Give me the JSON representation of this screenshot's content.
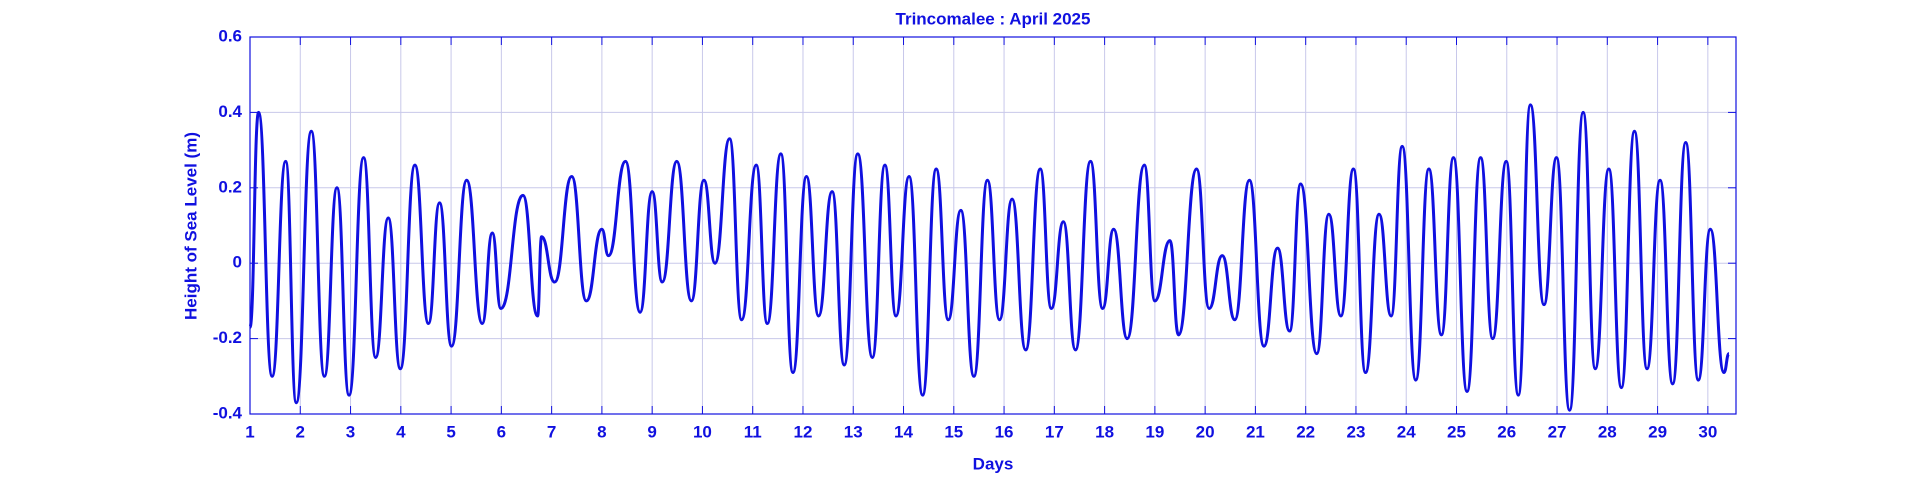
{
  "chart_data": {
    "type": "line",
    "title": "Trincomalee : April 2025",
    "x_label": "Days",
    "y_label": "Height of Sea Level (m)",
    "xlim": [
      1,
      30.56
    ],
    "ylim": [
      -0.4,
      0.6
    ],
    "xticks": [
      1,
      2,
      3,
      4,
      5,
      6,
      7,
      8,
      9,
      10,
      11,
      12,
      13,
      14,
      15,
      16,
      17,
      18,
      19,
      20,
      21,
      22,
      23,
      24,
      25,
      26,
      27,
      28,
      29,
      30
    ],
    "yticks": [
      -0.4,
      -0.2,
      0,
      0.2,
      0.4,
      0.6
    ],
    "grid": true,
    "series": [
      {
        "name": "Height of Sea Level",
        "color": "#1010e0",
        "x": [
          1.0,
          1.17,
          1.44,
          1.71,
          1.92,
          2.22,
          2.48,
          2.73,
          2.97,
          3.26,
          3.5,
          3.75,
          3.99,
          4.28,
          4.55,
          4.77,
          5.01,
          5.31,
          5.62,
          5.82,
          5.99,
          6.43,
          6.72,
          6.8,
          7.06,
          7.4,
          7.69,
          8.0,
          8.13,
          8.47,
          8.76,
          9.0,
          9.2,
          9.49,
          9.78,
          10.03,
          10.25,
          10.54,
          10.78,
          11.07,
          11.29,
          11.56,
          11.8,
          12.07,
          12.31,
          12.58,
          12.82,
          13.09,
          13.38,
          13.63,
          13.85,
          14.11,
          14.38,
          14.65,
          14.89,
          15.14,
          15.4,
          15.67,
          15.91,
          16.16,
          16.43,
          16.72,
          16.94,
          17.18,
          17.42,
          17.72,
          17.96,
          18.18,
          18.45,
          18.79,
          19.0,
          19.3,
          19.47,
          19.83,
          20.08,
          20.34,
          20.59,
          20.88,
          21.17,
          21.44,
          21.68,
          21.9,
          22.22,
          22.46,
          22.7,
          22.95,
          23.19,
          23.46,
          23.7,
          23.92,
          24.19,
          24.45,
          24.7,
          24.94,
          25.21,
          25.48,
          25.72,
          25.99,
          26.23,
          26.47,
          26.74,
          26.99,
          27.25,
          27.52,
          27.76,
          28.03,
          28.28,
          28.54,
          28.79,
          29.05,
          29.3,
          29.56,
          29.81,
          30.05,
          30.32,
          30.42
        ],
        "values": [
          -0.17,
          0.4,
          -0.3,
          0.27,
          -0.37,
          0.35,
          -0.3,
          0.2,
          -0.35,
          0.28,
          -0.25,
          0.12,
          -0.28,
          0.26,
          -0.16,
          0.16,
          -0.22,
          0.22,
          -0.16,
          0.08,
          -0.12,
          0.18,
          -0.14,
          0.07,
          -0.05,
          0.23,
          -0.1,
          0.09,
          0.02,
          0.27,
          -0.13,
          0.19,
          -0.05,
          0.27,
          -0.1,
          0.22,
          0.0,
          0.33,
          -0.15,
          0.26,
          -0.16,
          0.29,
          -0.29,
          0.23,
          -0.14,
          0.19,
          -0.27,
          0.29,
          -0.25,
          0.26,
          -0.14,
          0.23,
          -0.35,
          0.25,
          -0.15,
          0.14,
          -0.3,
          0.22,
          -0.15,
          0.17,
          -0.23,
          0.25,
          -0.12,
          0.11,
          -0.23,
          0.27,
          -0.12,
          0.09,
          -0.2,
          0.26,
          -0.1,
          0.06,
          -0.19,
          0.25,
          -0.12,
          0.02,
          -0.15,
          0.22,
          -0.22,
          0.04,
          -0.18,
          0.21,
          -0.24,
          0.13,
          -0.14,
          0.25,
          -0.29,
          0.13,
          -0.14,
          0.31,
          -0.31,
          0.25,
          -0.19,
          0.28,
          -0.34,
          0.28,
          -0.2,
          0.27,
          -0.35,
          0.42,
          -0.11,
          0.28,
          -0.39,
          0.4,
          -0.28,
          0.25,
          -0.33,
          0.35,
          -0.28,
          0.22,
          -0.32,
          0.32,
          -0.31,
          0.09,
          -0.29,
          -0.24
        ]
      }
    ]
  }
}
